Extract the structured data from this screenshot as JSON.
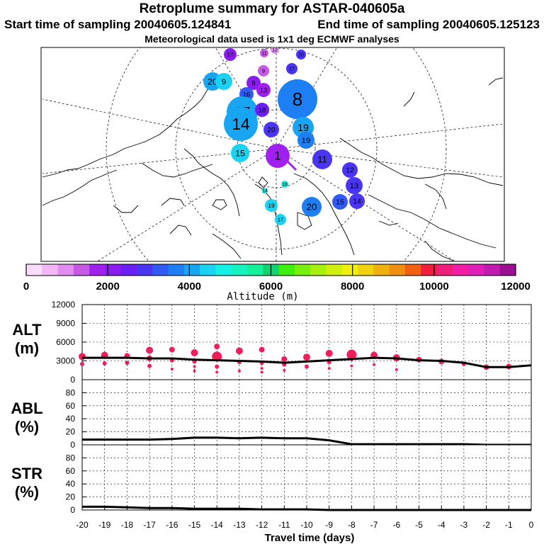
{
  "header": {
    "title": "Retroplume summary for ASTAR-040605a",
    "start": "Start time of sampling 20040605.124841",
    "end": "End time of sampling 20040605.125123",
    "met": "Meteorological data used is 1x1 deg ECMWF analyses"
  },
  "colorbar": {
    "colors": [
      "#fadcfa",
      "#f3b7f7",
      "#e28cf0",
      "#c65ae6",
      "#a020f0",
      "#8a1cf2",
      "#6a1ff5",
      "#4a36f2",
      "#3159f5",
      "#1e7ff5",
      "#18a6f2",
      "#1ad2f2",
      "#13f0e6",
      "#16f2c0",
      "#14f09a",
      "#10d26e",
      "#3cf00f",
      "#78f00f",
      "#a8f00f",
      "#d2f00f",
      "#f0f00f",
      "#f0d20f",
      "#f0b00f",
      "#f08f0f",
      "#f0600f",
      "#f01e3c",
      "#f01e7a",
      "#f01ea8",
      "#e01eb8",
      "#c01ab0",
      "#9a1090"
    ],
    "ticks": [
      "0",
      "2000",
      "4000",
      "6000",
      "8000",
      "10000",
      "12000"
    ],
    "label": "Altitude (m)"
  },
  "map": {
    "clusters": [
      {
        "label": "17",
        "color": "#8a1cf2",
        "r": 9
      },
      {
        "label": "11",
        "color": "#c65ae6",
        "r": 6
      },
      {
        "label": "12",
        "color": "#e28cf0",
        "r": 6
      },
      {
        "label": "20",
        "color": "#4a36f2",
        "r": 7
      },
      {
        "label": "17",
        "color": "#4a36f2",
        "r": 8
      },
      {
        "label": "9",
        "color": "#c65ae6",
        "r": 8
      },
      {
        "label": "20",
        "color": "#18a6f2",
        "r": 13
      },
      {
        "label": "9",
        "color": "#1ad2f2",
        "r": 12
      },
      {
        "label": "8",
        "color": "#8a1cf2",
        "r": 10
      },
      {
        "label": "16",
        "color": "#3159f5",
        "r": 10
      },
      {
        "label": "13",
        "color": "#a020f0",
        "r": 10
      },
      {
        "label": "8",
        "color": "#1e7ff5",
        "r": 28
      },
      {
        "label": "17",
        "color": "#18a6f2",
        "r": 22
      },
      {
        "label": "14",
        "color": "#18a6f2",
        "r": 24
      },
      {
        "label": "18",
        "color": "#6a1ff5",
        "r": 10
      },
      {
        "label": "20",
        "color": "#4a36f2",
        "r": 11
      },
      {
        "label": "19",
        "color": "#18a6f2",
        "r": 15
      },
      {
        "label": "19",
        "color": "#1e7ff5",
        "r": 12
      },
      {
        "label": "15",
        "color": "#1ad2f2",
        "r": 13
      },
      {
        "label": "1",
        "color": "#a020f0",
        "r": 17
      },
      {
        "label": "11",
        "color": "#4a36f2",
        "r": 14
      },
      {
        "label": "12",
        "color": "#4a36f2",
        "r": 11
      },
      {
        "label": "13",
        "color": "#4a36f2",
        "r": 12
      },
      {
        "label": "14",
        "color": "#4a36f2",
        "r": 11
      },
      {
        "label": "15",
        "color": "#3159f5",
        "r": 11
      },
      {
        "label": "20",
        "color": "#1e7ff5",
        "r": 14
      },
      {
        "label": "14",
        "color": "#13f0e6",
        "r": 4
      },
      {
        "label": "18",
        "color": "#13f0e6",
        "r": 5
      },
      {
        "label": "19",
        "color": "#1ad2f2",
        "r": 9
      },
      {
        "label": "17",
        "color": "#1ad2f2",
        "r": 8
      }
    ]
  },
  "chart_data": [
    {
      "type": "scatter",
      "ylabel": "ALT\n(m)",
      "ylabel_line1": "ALT",
      "ylabel_line2": "(m)",
      "xlim": [
        -20,
        0
      ],
      "ylim": [
        0,
        12000
      ],
      "yticks": [
        "0",
        "3000",
        "6000",
        "9000",
        "12000"
      ],
      "mean_line": {
        "x": [
          -20,
          -19,
          -18,
          -17,
          -16,
          -15,
          -14,
          -13,
          -12,
          -11,
          -10,
          -9,
          -8,
          -7,
          -6,
          -5,
          -4,
          -3,
          -2,
          -1,
          0
        ],
        "y": [
          3500,
          3500,
          3500,
          3400,
          3400,
          3200,
          3100,
          3000,
          2900,
          2700,
          2900,
          3100,
          3300,
          3500,
          3400,
          3100,
          3000,
          2700,
          2000,
          2000,
          2300
        ]
      },
      "points": {
        "x": [
          -20,
          -20,
          -19,
          -19,
          -18,
          -18,
          -17,
          -17,
          -17,
          -16,
          -16,
          -16,
          -15,
          -15,
          -15,
          -15,
          -14,
          -14,
          -14,
          -14,
          -13,
          -13,
          -13,
          -12,
          -12,
          -12,
          -12,
          -11,
          -11,
          -11,
          -10,
          -10,
          -9,
          -9,
          -9,
          -8,
          -8,
          -8,
          -7,
          -7,
          -6,
          -6,
          -5,
          -4,
          -3,
          -2,
          -1
        ],
        "y": [
          3700,
          2500,
          3900,
          2600,
          3800,
          2700,
          4700,
          3400,
          2200,
          4800,
          3100,
          1700,
          4300,
          2900,
          2100,
          1400,
          5300,
          3700,
          2100,
          1200,
          4600,
          2800,
          1400,
          4800,
          2700,
          1800,
          1200,
          3300,
          2400,
          1500,
          3600,
          2100,
          4200,
          2800,
          1800,
          4000,
          3300,
          2200,
          3900,
          2400,
          3500,
          1600,
          3200,
          2900,
          2500,
          2000,
          2100
        ],
        "size": [
          5,
          3,
          5,
          3,
          4,
          3,
          5,
          4,
          3,
          4,
          3,
          2,
          5,
          3,
          2,
          2,
          4,
          7,
          3,
          2,
          5,
          3,
          2,
          4,
          3,
          2,
          2,
          4,
          3,
          2,
          5,
          3,
          5,
          3,
          2,
          7,
          3,
          2,
          5,
          2,
          5,
          2,
          4,
          4,
          3,
          4,
          4
        ]
      }
    },
    {
      "type": "line",
      "ylabel_line1": "ABL",
      "ylabel_line2": "(%)",
      "xlim": [
        -20,
        0
      ],
      "ylim": [
        0,
        100
      ],
      "yticks": [
        "0",
        "20",
        "40",
        "60",
        "80"
      ],
      "x": [
        -20,
        -19,
        -18,
        -17,
        -16,
        -15,
        -14,
        -13,
        -12,
        -11,
        -10,
        -9,
        -8,
        -7,
        -6,
        -5,
        -4,
        -3,
        -2,
        -1,
        0
      ],
      "y": [
        8,
        8,
        8,
        8,
        9,
        11,
        11,
        10,
        11,
        10,
        10,
        7,
        1,
        1,
        1,
        1,
        1,
        1,
        0,
        0,
        0
      ]
    },
    {
      "type": "line",
      "ylabel_line1": "STR",
      "ylabel_line2": "(%)",
      "xlim": [
        -20,
        0
      ],
      "ylim": [
        0,
        100
      ],
      "yticks": [
        "0",
        "20",
        "40",
        "60",
        "80"
      ],
      "x": [
        -20,
        -19,
        -18,
        -17,
        -16,
        -15,
        -14,
        -13,
        -12,
        -11,
        -10,
        -9,
        -8,
        -7,
        -6,
        -5,
        -4,
        -3,
        -2,
        -1,
        0
      ],
      "y": [
        5,
        5,
        4,
        3,
        3,
        2,
        2,
        2,
        1,
        1,
        1,
        0,
        0,
        0,
        0,
        0,
        0,
        0,
        0,
        0,
        0
      ]
    }
  ],
  "xaxis": {
    "ticks": [
      "-20",
      "-19",
      "-18",
      "-17",
      "-16",
      "-15",
      "-14",
      "-13",
      "-12",
      "-11",
      "-10",
      "-9",
      "-8",
      "-7",
      "-6",
      "-5",
      "-4",
      "-3",
      "-2",
      "-1",
      "0"
    ],
    "label": "Travel time (days)"
  }
}
